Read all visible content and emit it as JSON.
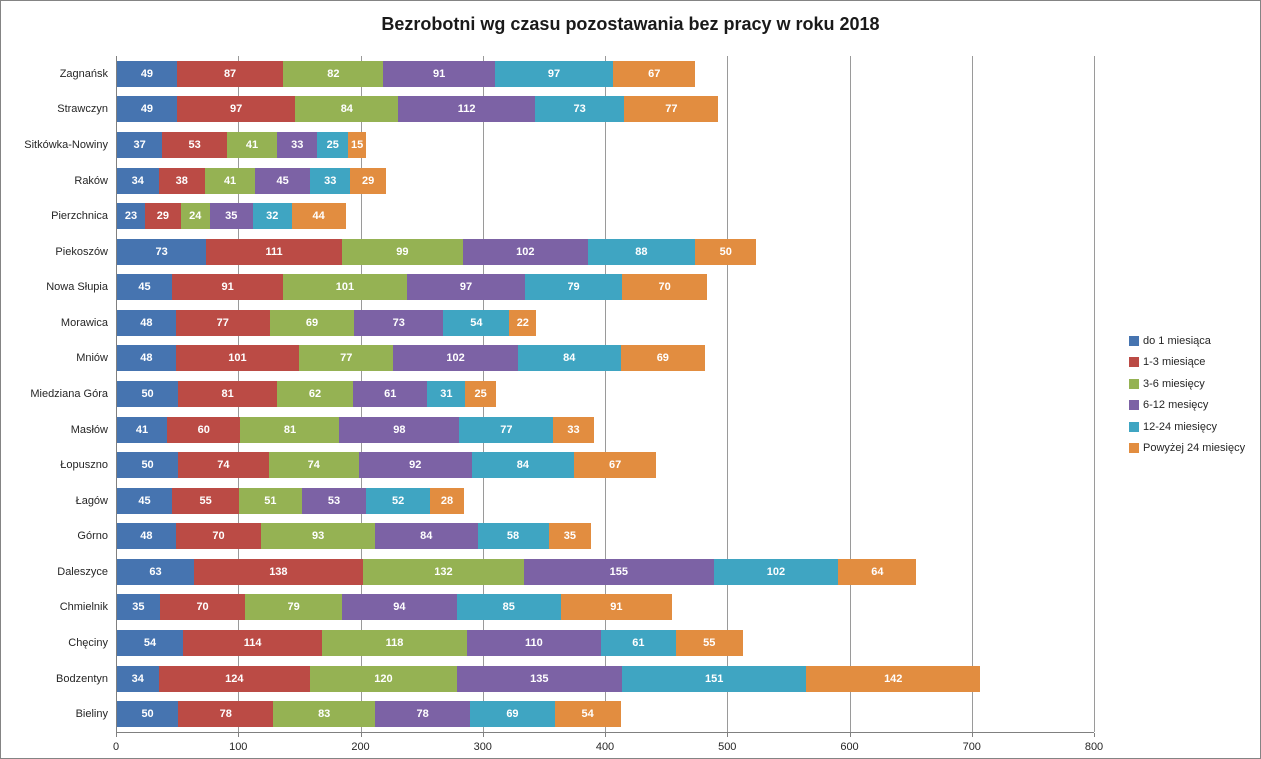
{
  "chart_data": {
    "type": "bar",
    "orientation": "horizontal",
    "stacked": true,
    "title": "Bezrobotni wg czasu pozostawania bez pracy w roku 2018",
    "categories": [
      "Zagnańsk",
      "Strawczyn",
      "Sitkówka-Nowiny",
      "Raków",
      "Pierzchnica",
      "Piekoszów",
      "Nowa Słupia",
      "Morawica",
      "Mniów",
      "Miedziana Góra",
      "Masłów",
      "Łopuszno",
      "Łagów",
      "Górno",
      "Daleszyce",
      "Chmielnik",
      "Chęciny",
      "Bodzentyn",
      "Bieliny"
    ],
    "series": [
      {
        "name": "do 1 miesiąca",
        "color": "#4674B0",
        "values": [
          49,
          49,
          37,
          34,
          23,
          73,
          45,
          48,
          48,
          50,
          41,
          50,
          45,
          48,
          63,
          35,
          54,
          34,
          50
        ]
      },
      {
        "name": "1-3 miesiące",
        "color": "#BB4B45",
        "values": [
          87,
          97,
          53,
          38,
          29,
          111,
          91,
          77,
          101,
          81,
          60,
          74,
          55,
          70,
          138,
          70,
          114,
          124,
          78
        ]
      },
      {
        "name": "3-6 miesięcy",
        "color": "#95B253",
        "values": [
          82,
          84,
          41,
          41,
          24,
          99,
          101,
          69,
          77,
          62,
          81,
          74,
          51,
          93,
          132,
          79,
          118,
          120,
          83
        ]
      },
      {
        "name": "6-12 mesięcy",
        "color": "#7C62A5",
        "values": [
          91,
          112,
          33,
          45,
          35,
          102,
          97,
          73,
          102,
          61,
          98,
          92,
          53,
          84,
          155,
          94,
          110,
          135,
          78
        ]
      },
      {
        "name": "12-24 miesięcy",
        "color": "#3FA5C2",
        "values": [
          97,
          73,
          25,
          33,
          32,
          88,
          79,
          54,
          84,
          31,
          77,
          84,
          52,
          58,
          102,
          85,
          61,
          151,
          69
        ]
      },
      {
        "name": "Powyżej 24 miesięcy",
        "color": "#E28D40",
        "values": [
          67,
          77,
          15,
          29,
          44,
          50,
          70,
          22,
          69,
          25,
          33,
          67,
          28,
          35,
          64,
          91,
          55,
          142,
          54
        ]
      }
    ],
    "xlim": [
      0,
      800
    ],
    "x_ticks": [
      0,
      100,
      200,
      300,
      400,
      500,
      600,
      700,
      800
    ],
    "grid": "vertical",
    "legend_position": "right",
    "data_labels": "inside-white",
    "colors": {
      "gridline": "#9a9a9a",
      "axis": "#808080",
      "label_text": "#262626",
      "value_text": "#ffffff"
    }
  }
}
